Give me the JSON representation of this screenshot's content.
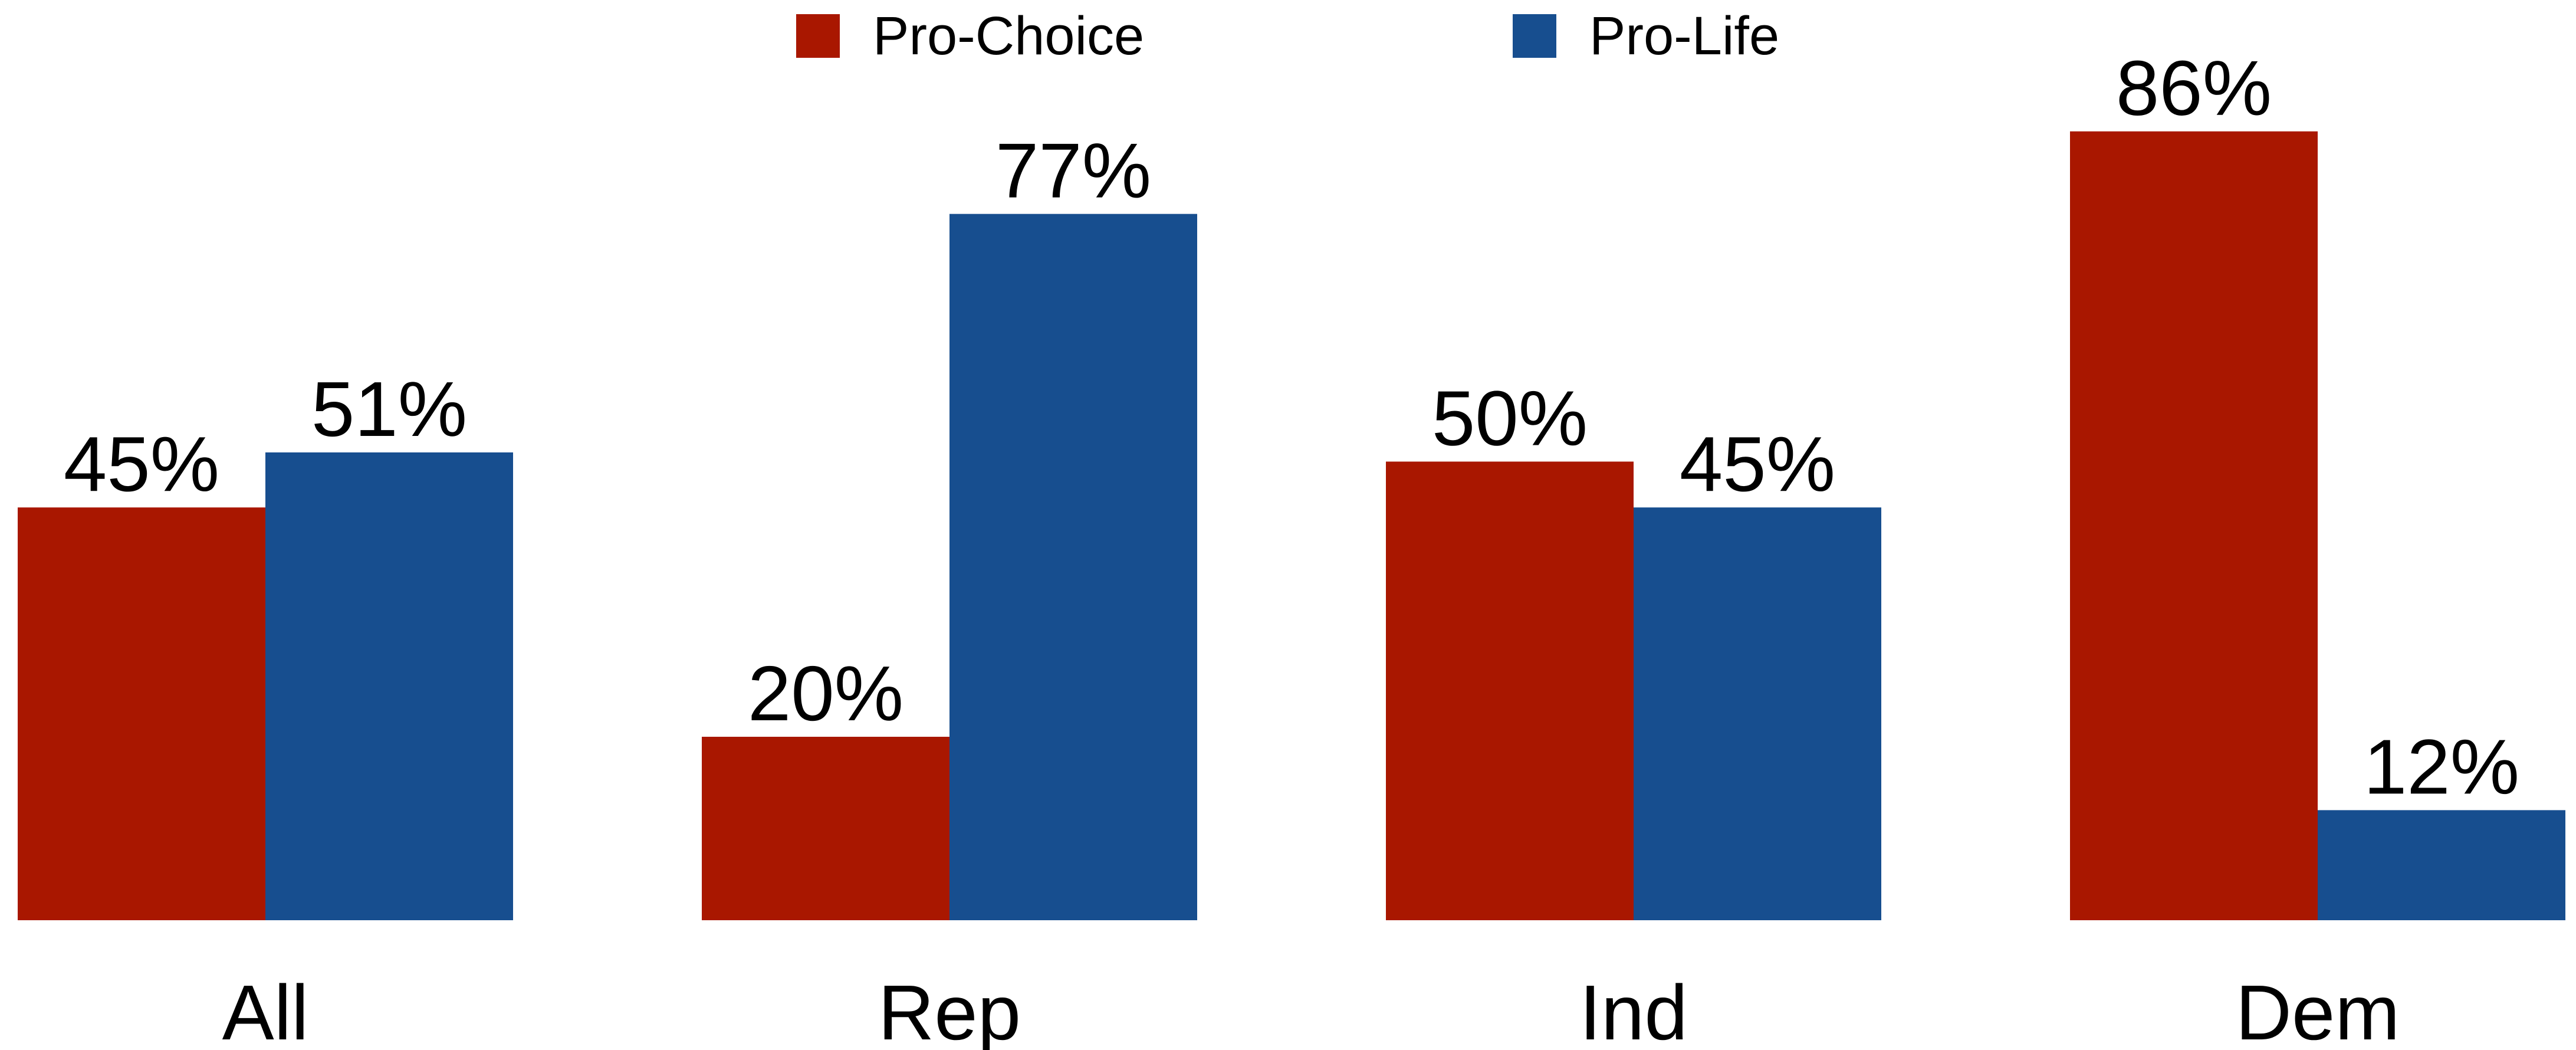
{
  "chart_data": {
    "type": "bar",
    "title": "",
    "xlabel": "",
    "ylabel": "",
    "ylim": [
      0,
      100
    ],
    "grid": false,
    "legend_position": "top-center",
    "categories": [
      "All",
      "Rep",
      "Ind",
      "Dem"
    ],
    "series": [
      {
        "name": "Pro-Choice",
        "color": "#A91700",
        "values": [
          45,
          20,
          50,
          86
        ],
        "labels": [
          "45%",
          "20%",
          "50%",
          "86%"
        ]
      },
      {
        "name": "Pro-Life",
        "color": "#174E8F",
        "values": [
          51,
          77,
          45,
          12
        ],
        "labels": [
          "51%",
          "77%",
          "45%",
          "12%"
        ]
      }
    ]
  }
}
